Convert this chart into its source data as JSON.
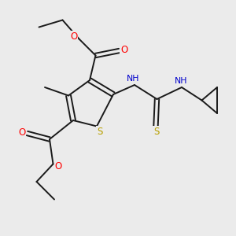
{
  "bg_color": "#ebebeb",
  "atom_colors": {
    "C": "#000000",
    "H": "#4a9898",
    "N": "#0000cc",
    "O": "#ff0000",
    "S": "#b8a000"
  },
  "bond_color": "#1a1a1a",
  "figsize": [
    3.0,
    3.0
  ],
  "dpi": 100,
  "xlim": [
    0,
    10
  ],
  "ylim": [
    0,
    10
  ]
}
